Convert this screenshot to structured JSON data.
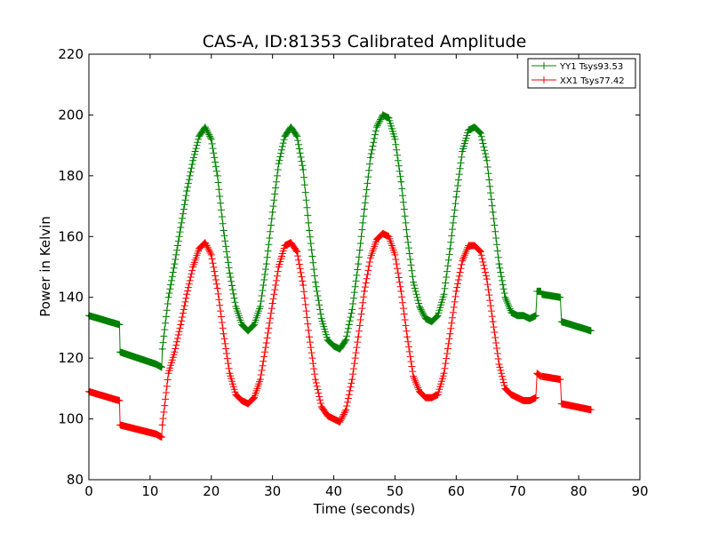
{
  "chart_data": {
    "type": "line",
    "title": "CAS-A, ID:81353 Calibrated Amplitude",
    "xlabel": "Time (seconds)",
    "ylabel": "Power in Kelvin",
    "xlim": [
      0,
      90
    ],
    "ylim": [
      80,
      220
    ],
    "xticks": [
      0,
      10,
      20,
      30,
      40,
      50,
      60,
      70,
      80,
      90
    ],
    "yticks": [
      80,
      100,
      120,
      140,
      160,
      180,
      200,
      220
    ],
    "grid": false,
    "legend_position": "top-right",
    "marker": "+",
    "series": [
      {
        "name": "YY1 Tsys93.53",
        "color": "#008000",
        "x": [
          0,
          5,
          5.1,
          11,
          11.9,
          12,
          13,
          14,
          15,
          16,
          17,
          18,
          19,
          20,
          21,
          22,
          23,
          24,
          25,
          26,
          27,
          28,
          29,
          30,
          31,
          32,
          33,
          34,
          35,
          36,
          37,
          38,
          39,
          40,
          41,
          42,
          43,
          44,
          45,
          46,
          47,
          48,
          49,
          50,
          51,
          52,
          53,
          54,
          55,
          56,
          57,
          58,
          59,
          60,
          61,
          62,
          63,
          64,
          65,
          66,
          67,
          68,
          69,
          70,
          71,
          72,
          73,
          73.2,
          73.8,
          74,
          77,
          77.2,
          82
        ],
        "y": [
          134,
          131,
          122,
          118,
          117,
          123,
          140,
          151,
          163,
          175,
          185,
          193,
          196,
          192,
          180,
          162,
          148,
          137,
          131,
          129,
          131,
          137,
          151,
          168,
          184,
          193,
          196,
          193,
          182,
          162,
          145,
          133,
          126,
          124,
          123,
          126,
          136,
          151,
          169,
          186,
          196,
          200,
          199,
          192,
          178,
          160,
          145,
          137,
          133,
          132,
          134,
          141,
          156,
          173,
          188,
          195,
          196,
          194,
          185,
          168,
          151,
          140,
          135,
          134,
          134,
          133,
          134,
          142,
          142,
          141,
          140,
          132,
          129
        ]
      },
      {
        "name": "XX1 Tsys77.42",
        "color": "#ff0000",
        "x": [
          0,
          5,
          5.1,
          11,
          11.9,
          12,
          13,
          14,
          15,
          16,
          17,
          18,
          19,
          20,
          21,
          22,
          23,
          24,
          25,
          26,
          27,
          28,
          29,
          30,
          31,
          32,
          33,
          34,
          35,
          36,
          37,
          38,
          39,
          40,
          41,
          42,
          43,
          44,
          45,
          46,
          47,
          48,
          49,
          50,
          51,
          52,
          53,
          54,
          55,
          56,
          57,
          58,
          59,
          60,
          61,
          62,
          63,
          64,
          65,
          66,
          67,
          68,
          69,
          70,
          71,
          72,
          73,
          73.2,
          73.8,
          74,
          77,
          77.2,
          82
        ],
        "y": [
          109,
          106,
          98,
          95,
          94,
          98,
          115,
          122,
          131,
          141,
          150,
          156,
          158,
          154,
          143,
          128,
          115,
          108,
          106,
          105,
          107,
          113,
          125,
          138,
          150,
          157,
          158,
          155,
          144,
          127,
          113,
          104,
          101,
          100,
          99,
          103,
          113,
          127,
          142,
          153,
          159,
          161,
          160,
          154,
          142,
          127,
          114,
          109,
          107,
          107,
          108,
          115,
          128,
          142,
          152,
          157,
          157,
          155,
          146,
          132,
          118,
          110,
          108,
          107,
          106,
          106,
          107,
          115,
          114,
          114,
          113,
          105,
          103
        ]
      }
    ]
  }
}
